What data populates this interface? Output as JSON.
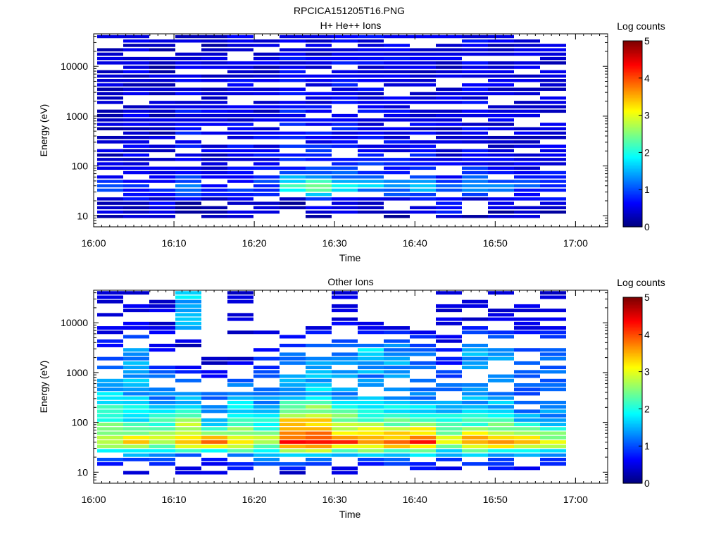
{
  "figure_title": "RPCICA151205T16.PNG",
  "chart_data": [
    {
      "type": "heatmap",
      "title": "H+ He++ Ions",
      "xlabel": "Time",
      "ylabel": "Energy (eV)",
      "yscale": "log",
      "ylim": [
        6,
        45000
      ],
      "xlim_minutes": [
        0,
        64
      ],
      "x_ticks": [
        "16:00",
        "16:10",
        "16:20",
        "16:30",
        "16:40",
        "16:50",
        "17:00"
      ],
      "y_ticks": [
        "10",
        "100",
        "1000",
        "10000"
      ],
      "colorbar": {
        "label": "Log counts",
        "ticks": [
          "0",
          "1",
          "2",
          "3",
          "4",
          "5"
        ],
        "range": [
          0,
          5
        ],
        "colormap": "jet"
      },
      "time_bins": [
        "16:00",
        "16:03",
        "16:06",
        "16:10",
        "16:13",
        "16:16",
        "16:20",
        "16:23",
        "16:26",
        "16:30",
        "16:33",
        "16:36",
        "16:40",
        "16:43",
        "16:46",
        "16:50",
        "16:53",
        "16:56"
      ],
      "profile": [
        {
          "energy_ev": 10,
          "log_counts": [
            0.3,
            0.3,
            0.4,
            0.0,
            0.2,
            0.3,
            0.3,
            0.0,
            0.3,
            0.3,
            0.0,
            0.2,
            0.3,
            0.5,
            0.0,
            0.2,
            0.3,
            0.2
          ]
        },
        {
          "energy_ev": 20,
          "log_counts": [
            0.3,
            0.4,
            0.4,
            0.3,
            0.4,
            0.5,
            0.4,
            0.0,
            0.6,
            0.5,
            0.4,
            0.3,
            0.6,
            0.6,
            0.0,
            0.4,
            0.5,
            0.4
          ]
        },
        {
          "energy_ev": 40,
          "log_counts": [
            1.0,
            0.8,
            0.8,
            1.3,
            0.6,
            0.8,
            0.9,
            2.3,
            2.6,
            1.9,
            1.6,
            1.5,
            1.6,
            0.9,
            1.5,
            1.3,
            0.9,
            0.9
          ]
        },
        {
          "energy_ev": 80,
          "log_counts": [
            0.4,
            0.4,
            0.4,
            0.6,
            0.4,
            0.5,
            0.6,
            0.8,
            0.9,
            0.8,
            0.8,
            0.7,
            0.7,
            0.5,
            0.7,
            0.5,
            0.5,
            0.5
          ]
        },
        {
          "energy_ev": 300,
          "log_counts": [
            0.3,
            0.4,
            0.3,
            0.6,
            0.4,
            0.5,
            0.5,
            0.7,
            0.6,
            0.6,
            0.5,
            0.5,
            0.5,
            0.4,
            0.5,
            0.4,
            0.4,
            0.4
          ]
        },
        {
          "energy_ev": 3000,
          "log_counts": [
            0.3,
            0.4,
            0.3,
            0.5,
            0.4,
            0.5,
            0.4,
            0.6,
            0.5,
            0.6,
            0.5,
            0.5,
            0.4,
            0.4,
            0.5,
            0.4,
            0.4,
            0.4
          ]
        },
        {
          "energy_ev": 30000,
          "log_counts": [
            0.3,
            0.4,
            0.3,
            0.4,
            0.3,
            0.4,
            0.4,
            0.5,
            0.4,
            0.5,
            0.5,
            0.5,
            0.4,
            0.4,
            0.5,
            0.4,
            0.4,
            0.4
          ]
        }
      ]
    },
    {
      "type": "heatmap",
      "title": "Other Ions",
      "xlabel": "Time",
      "ylabel": "Energy (eV)",
      "yscale": "log",
      "ylim": [
        6,
        45000
      ],
      "xlim_minutes": [
        0,
        64
      ],
      "x_ticks": [
        "16:00",
        "16:10",
        "16:20",
        "16:30",
        "16:40",
        "16:50",
        "17:00"
      ],
      "y_ticks": [
        "10",
        "100",
        "1000",
        "10000"
      ],
      "colorbar": {
        "label": "Log counts",
        "ticks": [
          "0",
          "1",
          "2",
          "3",
          "4",
          "5"
        ],
        "range": [
          0,
          5
        ],
        "colormap": "jet"
      },
      "time_bins": [
        "16:00",
        "16:03",
        "16:06",
        "16:10",
        "16:13",
        "16:16",
        "16:20",
        "16:23",
        "16:26",
        "16:30",
        "16:33",
        "16:36",
        "16:40",
        "16:43",
        "16:46",
        "16:50",
        "16:53",
        "16:56"
      ],
      "profile": [
        {
          "energy_ev": 10,
          "log_counts": [
            0.3,
            0.3,
            0.0,
            0.3,
            0.3,
            0.3,
            0.3,
            0.3,
            0.0,
            0.3,
            0.3,
            0.0,
            0.3,
            0.0,
            0.0,
            0.3,
            0.0,
            0.3
          ]
        },
        {
          "energy_ev": 20,
          "log_counts": [
            0.8,
            0.9,
            0.9,
            0.9,
            0.6,
            1.0,
            1.2,
            1.3,
            1.2,
            0.9,
            1.0,
            1.2,
            1.0,
            1.0,
            1.1,
            1.0,
            1.0,
            0.9
          ]
        },
        {
          "energy_ev": 40,
          "log_counts": [
            3.0,
            3.3,
            3.0,
            3.4,
            4.0,
            3.4,
            3.0,
            4.2,
            4.3,
            4.0,
            3.9,
            4.0,
            4.2,
            3.0,
            3.7,
            3.6,
            3.5,
            3.0
          ]
        },
        {
          "energy_ev": 100,
          "log_counts": [
            2.3,
            2.0,
            2.1,
            2.7,
            1.3,
            2.1,
            1.9,
            3.3,
            3.4,
            2.6,
            2.4,
            2.3,
            2.4,
            2.0,
            2.1,
            2.2,
            1.6,
            1.5
          ]
        },
        {
          "energy_ev": 400,
          "log_counts": [
            1.6,
            1.5,
            1.2,
            1.2,
            0.9,
            1.3,
            1.1,
            1.5,
            1.6,
            1.3,
            1.2,
            1.2,
            1.1,
            1.0,
            1.2,
            1.1,
            0.9,
            1.0
          ]
        },
        {
          "energy_ev": 3000,
          "log_counts": [
            0.6,
            1.3,
            0.5,
            0.0,
            0.0,
            0.0,
            0.5,
            0.9,
            1.2,
            1.1,
            1.6,
            1.4,
            1.0,
            0.5,
            1.4,
            1.3,
            0.9,
            1.0
          ]
        },
        {
          "energy_ev": 12000,
          "log_counts": [
            0.3,
            0.3,
            0.3,
            1.6,
            0.0,
            0.3,
            0.0,
            0.0,
            0.0,
            0.3,
            0.0,
            0.0,
            0.0,
            0.3,
            0.3,
            0.3,
            0.3,
            0.3
          ]
        }
      ]
    }
  ]
}
